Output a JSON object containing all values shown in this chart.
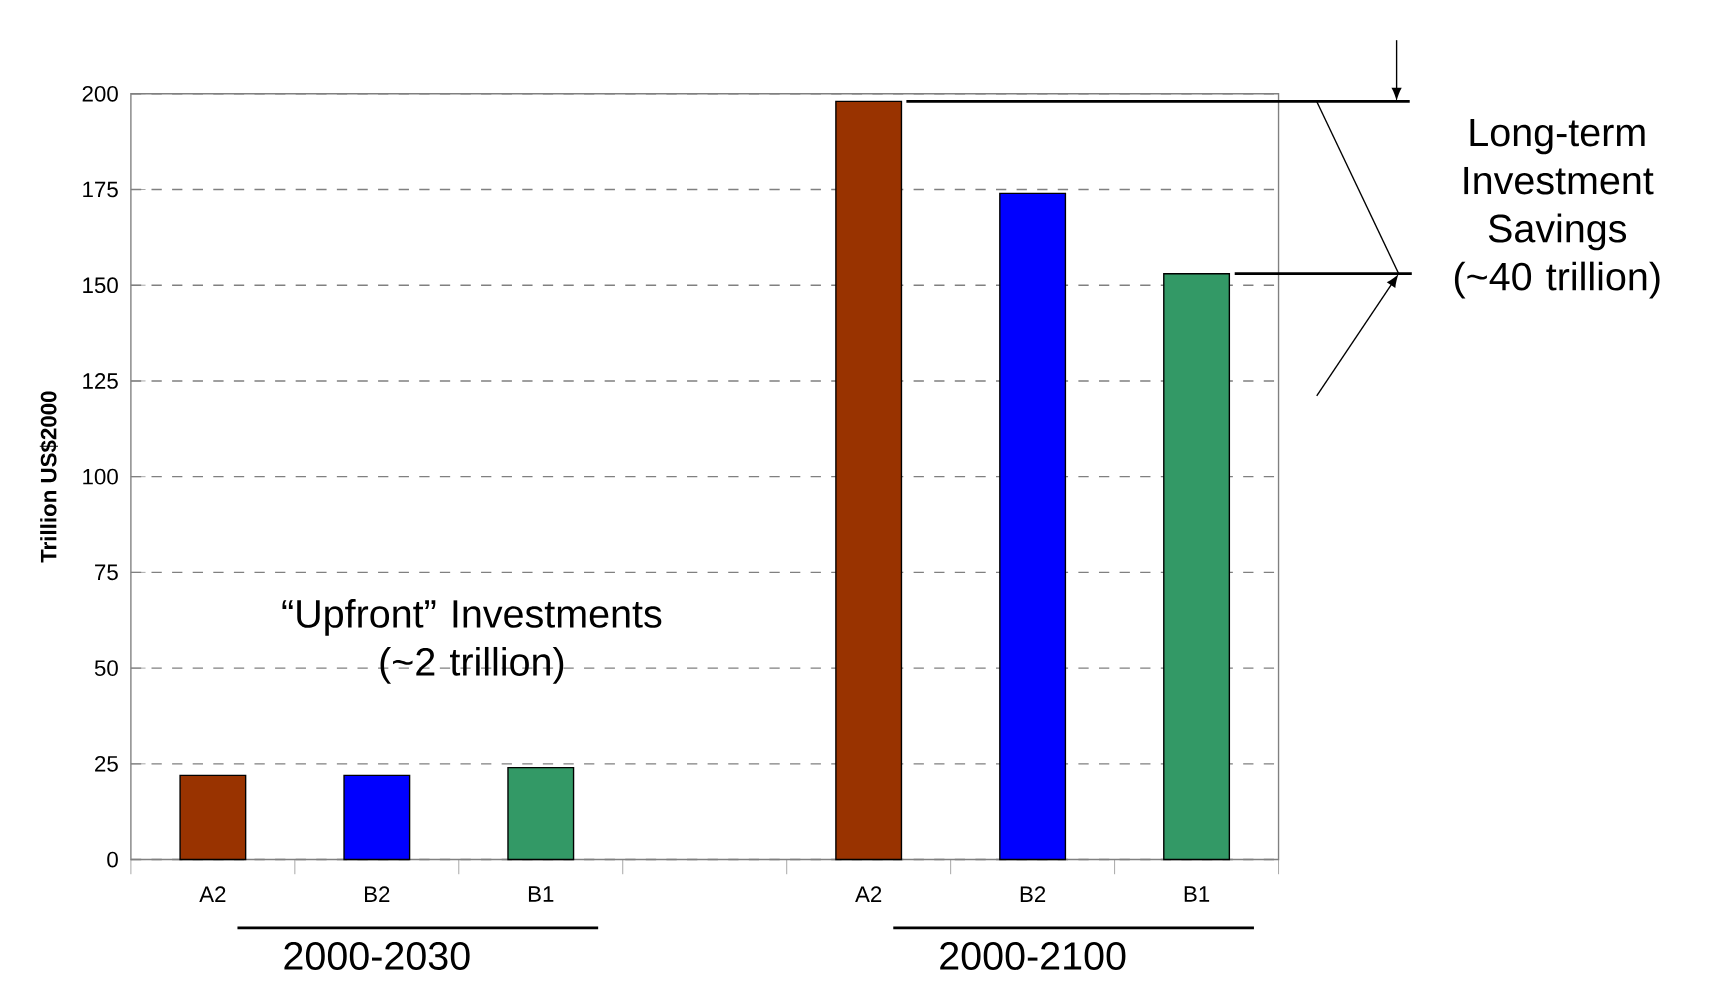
{
  "chart_data": {
    "type": "bar",
    "categories": [
      "A2",
      "B2",
      "B1",
      null,
      "A2",
      "B2",
      "B1"
    ],
    "values": [
      22,
      22,
      24,
      null,
      198,
      174,
      153
    ],
    "colors": [
      "#993300",
      "#0000ff",
      "#339966",
      "#000000",
      "#993300",
      "#0000ff",
      "#339966"
    ],
    "ylabel": "Trillion US$2000",
    "ylim": [
      0,
      200
    ],
    "yticks": [
      0,
      25,
      50,
      75,
      100,
      125,
      150,
      175,
      200
    ],
    "grid": "y",
    "ref_lines": [
      {
        "axis": "y",
        "value": 198
      }
    ],
    "annotations": [
      "“Upfront” Investments (~2 trillion)",
      "Long-term Investment Savings (~40 trillion)",
      "2000-2030",
      "2000-2100"
    ]
  }
}
